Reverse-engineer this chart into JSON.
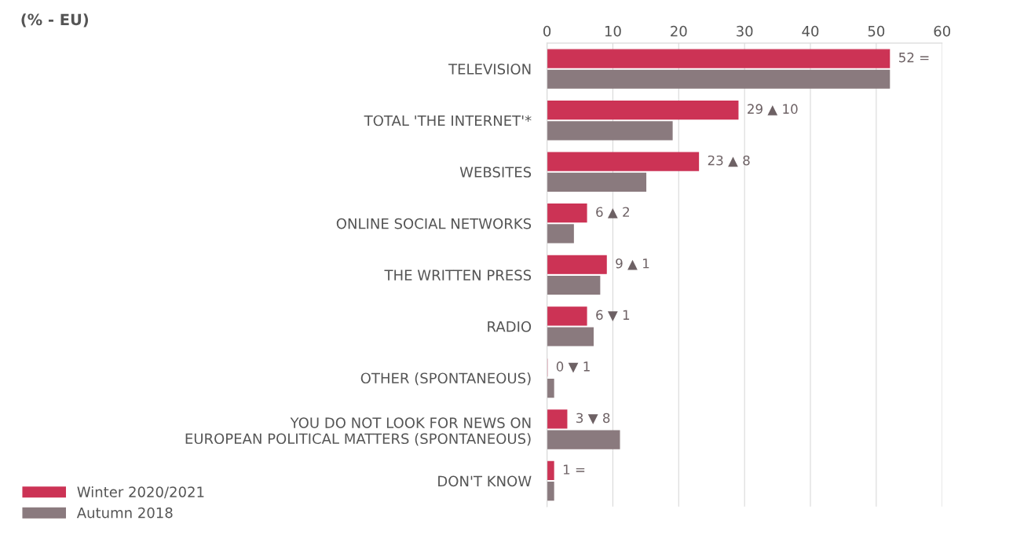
{
  "chart_data": {
    "type": "bar",
    "orientation": "horizontal",
    "title": "(% - EU)",
    "categories": [
      "TELEVISION",
      "TOTAL 'THE INTERNET'*",
      "WEBSITES",
      "ONLINE SOCIAL NETWORKS",
      "THE WRITTEN PRESS",
      "RADIO",
      "OTHER (SPONTANEOUS)",
      "YOU DO NOT LOOK FOR NEWS ON\nEUROPEAN POLITICAL MATTERS (SPONTANEOUS)",
      "DON'T KNOW"
    ],
    "series": [
      {
        "name": "Winter 2020/2021",
        "color": "#cc3355",
        "values": [
          52,
          29,
          23,
          6,
          9,
          6,
          0,
          3,
          1
        ],
        "value_labels": [
          "52 =",
          "29 ▲ 10",
          "23 ▲ 8",
          "6 ▲ 2",
          "9 ▲ 1",
          "6 ▼ 1",
          "0 ▼ 1",
          "3 ▼ 8",
          "1 ="
        ]
      },
      {
        "name": "Autumn 2018",
        "color": "#8a7a7e",
        "values": [
          52,
          19,
          15,
          4,
          8,
          7,
          1,
          11,
          1
        ]
      }
    ],
    "xlim": [
      0,
      60
    ],
    "xticks": [
      0,
      10,
      20,
      30,
      40,
      50,
      60
    ],
    "grid": "x",
    "legend": "bottom left"
  }
}
